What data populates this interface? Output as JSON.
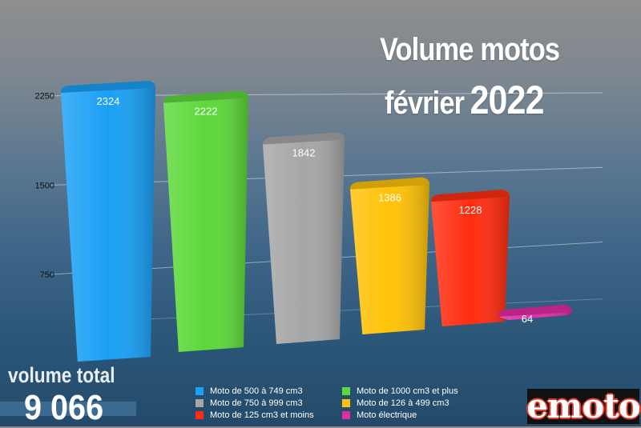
{
  "title": {
    "line1": "Volume motos",
    "month": "février",
    "year": "2022"
  },
  "chart_data": {
    "type": "bar",
    "categories": [
      "Moto de 500 à 749 cm3",
      "Moto de 1000 cm3 et plus",
      "Moto de 750 à 999 cm3",
      "Moto de 126 à 499 cm3",
      "Moto de 125 cm3 et moins",
      "Moto électrique"
    ],
    "values": [
      2324,
      2222,
      1842,
      1386,
      1228,
      64
    ],
    "value_labels": [
      "2324",
      "2222",
      "1842",
      "1386",
      "1228",
      "64"
    ],
    "colors": [
      "#1aa0f5",
      "#5dd83a",
      "#a6a6a6",
      "#ffc208",
      "#ff2d10",
      "#e22ca4"
    ],
    "yticks": [
      "750",
      "1500",
      "2250"
    ],
    "ytick_values": [
      750,
      1500,
      2250
    ],
    "ylim": [
      0,
      2500
    ],
    "grid": true,
    "legend_position": "bottom"
  },
  "legend": [
    {
      "label": "Moto de 500 à 749 cm3",
      "color": "#1aa0f5"
    },
    {
      "label": "Moto de 1000 cm3 et plus",
      "color": "#5dd83a"
    },
    {
      "label": "Moto de 750 à 999 cm3",
      "color": "#a6a6a6"
    },
    {
      "label": "Moto de 126 à 499 cm3",
      "color": "#ffc208"
    },
    {
      "label": "Moto de 125 cm3 et moins",
      "color": "#ff2d10"
    },
    {
      "label": "Moto électrique",
      "color": "#e22ca4"
    }
  ],
  "total": {
    "label": "volume total",
    "value": "9 066"
  },
  "logo": {
    "text": "emoto"
  }
}
